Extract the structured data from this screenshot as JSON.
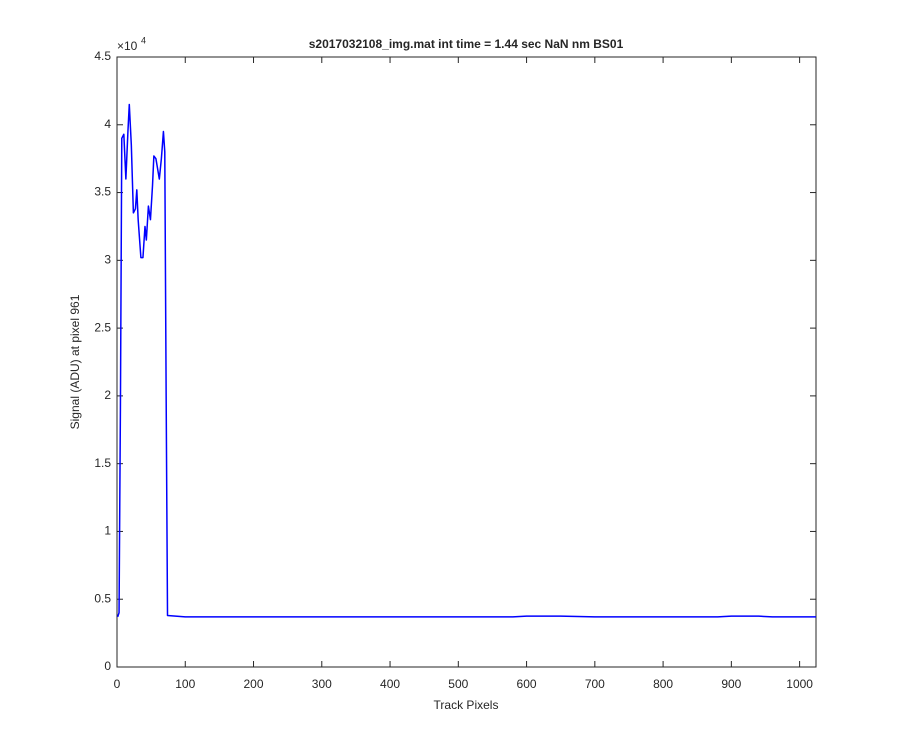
{
  "chart_data": {
    "type": "line",
    "title": "s2017032108_img.mat int time = 1.44 sec  NaN nm BS01",
    "x_label": "Track Pixels",
    "y_label": "Signal (ADU) at pixel 961",
    "y_exponent": {
      "base": "×10",
      "power": "4"
    },
    "x": [
      1,
      3,
      5,
      7,
      10,
      13,
      16,
      18,
      21,
      24,
      27,
      29,
      31,
      35,
      38,
      41,
      43,
      46,
      49,
      52,
      54,
      57,
      62,
      65,
      68,
      70,
      72,
      74,
      100,
      200,
      300,
      400,
      500,
      580,
      600,
      650,
      700,
      750,
      800,
      880,
      900,
      940,
      960,
      1024
    ],
    "series": [
      {
        "color": "#0000ff",
        "values": [
          0.37,
          0.4,
          1.9,
          3.9,
          3.93,
          3.6,
          3.95,
          4.15,
          3.85,
          3.35,
          3.38,
          3.52,
          3.3,
          3.02,
          3.02,
          3.25,
          3.15,
          3.4,
          3.3,
          3.55,
          3.77,
          3.75,
          3.6,
          3.75,
          3.95,
          3.8,
          2.0,
          0.38,
          0.37,
          0.37,
          0.37,
          0.37,
          0.37,
          0.37,
          0.375,
          0.375,
          0.37,
          0.37,
          0.37,
          0.37,
          0.375,
          0.375,
          0.37,
          0.37
        ]
      }
    ],
    "xlim": [
      0,
      1024
    ],
    "xticks": [
      0,
      100,
      200,
      300,
      400,
      500,
      600,
      700,
      800,
      900,
      1000
    ],
    "ylim": [
      0,
      4.5
    ],
    "yticks": [
      0,
      0.5,
      1,
      1.5,
      2,
      2.5,
      3,
      3.5,
      4,
      4.5
    ],
    "grid": false
  }
}
